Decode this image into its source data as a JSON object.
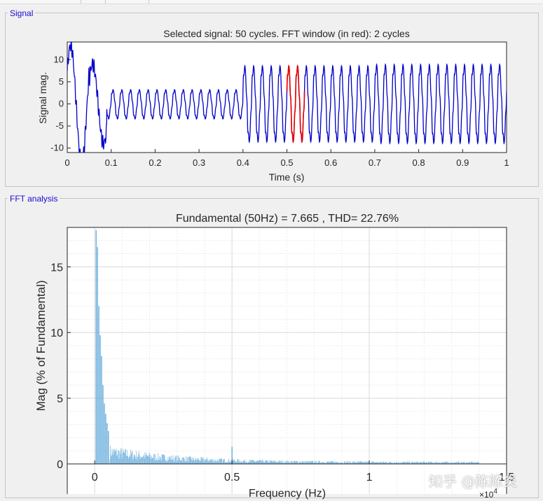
{
  "panels": {
    "signal_title": "Signal",
    "fft_title": "FFT analysis"
  },
  "watermark": "知乎 @陈陈炎",
  "colors": {
    "signal_line": "#0000c8",
    "fft_window": "#e60000",
    "fft_bars": "#4d9fd6",
    "panel_title": "#1a0bd1"
  },
  "chart_data": [
    {
      "type": "line",
      "title": "Selected signal: 50 cycles. FFT window (in red): 2 cycles",
      "xlabel": "Time (s)",
      "ylabel": "Signal mag.",
      "xlim": [
        0,
        1
      ],
      "ylim": [
        -11,
        14
      ],
      "xticks": [
        "0",
        "0.1",
        "0.2",
        "0.3",
        "0.4",
        "0.5",
        "0.6",
        "0.7",
        "0.8",
        "0.9",
        "1"
      ],
      "yticks": [
        "10",
        "5",
        "0",
        "-5",
        "-10"
      ],
      "grid": false,
      "frequency_hz": 50,
      "segments": [
        {
          "t_start": 0.0,
          "t_end": 0.09,
          "description_amplitude": 12,
          "offset": 0
        },
        {
          "t_start": 0.09,
          "t_end": 0.4,
          "description_amplitude": 3.2,
          "offset": -0.1
        },
        {
          "t_start": 0.4,
          "t_end": 0.7,
          "description_amplitude": 8.3,
          "offset": 0
        },
        {
          "t_start": 0.7,
          "t_end": 1.0,
          "description_amplitude": 8.6,
          "offset": 0
        }
      ],
      "fft_window": {
        "t_start": 0.5,
        "t_end": 0.54,
        "cycles": 2
      }
    },
    {
      "type": "bar",
      "title": "Fundamental (50Hz) = 7.665 , THD= 22.76%",
      "xlabel": "Frequency (Hz)",
      "ylabel": "Mag (% of Fundamental)",
      "xlim": [
        -1000,
        15000
      ],
      "ylim": [
        0,
        18
      ],
      "xticks": [
        "0",
        "0.5",
        "1",
        "1.5",
        "2",
        "2.5"
      ],
      "x_multiplier": "×10^4",
      "yticks": [
        "0",
        "5",
        "10",
        "15"
      ],
      "grid": true,
      "peaks": [
        {
          "x": 50,
          "y": 17.8
        },
        {
          "x": 100,
          "y": 16.5
        },
        {
          "x": 150,
          "y": 12.0
        },
        {
          "x": 200,
          "y": 9.8
        },
        {
          "x": 250,
          "y": 8.2
        },
        {
          "x": 300,
          "y": 6.0
        },
        {
          "x": 350,
          "y": 4.6
        },
        {
          "x": 400,
          "y": 3.8
        },
        {
          "x": 450,
          "y": 3.1
        },
        {
          "x": 500,
          "y": 2.5
        },
        {
          "x": 5000,
          "y": 1.3
        }
      ]
    }
  ]
}
